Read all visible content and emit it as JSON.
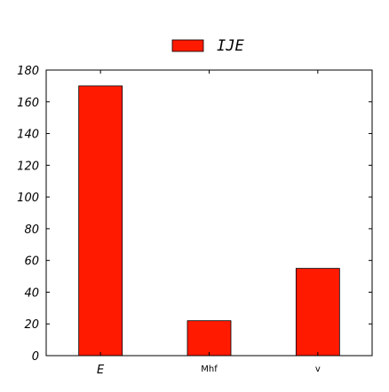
{
  "chart_data": {
    "type": "bar",
    "categories": [
      "E",
      "Mhf",
      "v"
    ],
    "series": [
      {
        "name": "IJE",
        "values": [
          170,
          22,
          55
        ]
      }
    ],
    "ylim": [
      0,
      180
    ],
    "yticks": [
      0,
      20,
      40,
      60,
      80,
      100,
      120,
      140,
      160,
      180
    ],
    "grid": false,
    "legend_position": "top-center",
    "bar_color": "#ff1a00",
    "edge_color": "#000000"
  }
}
